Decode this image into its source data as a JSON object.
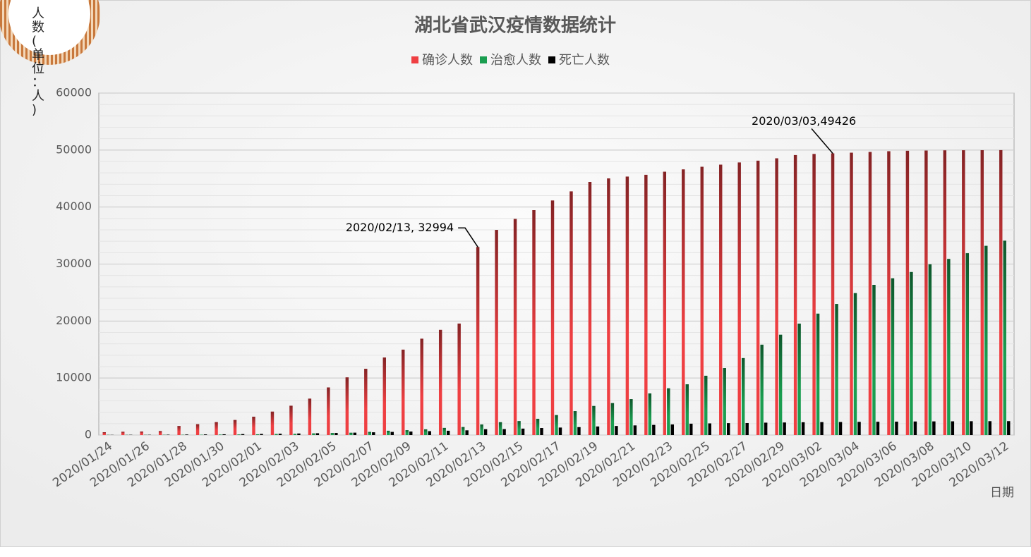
{
  "chart_data": {
    "type": "bar",
    "title": "湖北省武汉疫情数据统计",
    "y_label": "人数(单位：人)",
    "x_label": "日期",
    "categories": [
      "2020/01/24",
      null,
      "2020/01/26",
      null,
      "2020/01/28",
      null,
      "2020/01/30",
      null,
      "2020/02/01",
      null,
      "2020/02/03",
      null,
      "2020/02/05",
      null,
      "2020/02/07",
      null,
      "2020/02/09",
      null,
      "2020/02/11",
      null,
      "2020/02/13",
      null,
      "2020/02/15",
      null,
      "2020/02/17",
      null,
      "2020/02/19",
      null,
      "2020/02/21",
      null,
      "2020/02/23",
      null,
      "2020/02/25",
      null,
      "2020/02/27",
      null,
      "2020/02/29",
      null,
      "2020/03/02",
      null,
      "2020/03/04",
      null,
      "2020/03/06",
      null,
      "2020/03/08",
      null,
      "2020/03/10",
      null,
      "2020/03/12"
    ],
    "series": [
      {
        "name": "确诊人数",
        "color": "#ef3f42",
        "values": [
          495,
          572,
          618,
          698,
          1590,
          1905,
          2261,
          2639,
          3215,
          4109,
          5142,
          6384,
          8351,
          10117,
          11618,
          13603,
          14982,
          16902,
          18454,
          19558,
          32994,
          35991,
          37914,
          39462,
          41152,
          42752,
          44412,
          45027,
          45346,
          45660,
          46201,
          46607,
          47071,
          47441,
          47824,
          48137,
          48557,
          49122,
          49315,
          49426,
          49540,
          49671,
          49797,
          49871,
          49912,
          49948,
          49965,
          49978,
          49986
        ]
      },
      {
        "name": "治愈人数",
        "color": "#1a9e50",
        "values": [
          31,
          32,
          35,
          40,
          50,
          60,
          80,
          100,
          130,
          180,
          200,
          280,
          350,
          400,
          550,
          750,
          850,
          1000,
          1250,
          1400,
          1850,
          2250,
          2450,
          2850,
          3500,
          4200,
          5100,
          5600,
          6300,
          7300,
          8200,
          8900,
          10400,
          11750,
          13500,
          15850,
          17600,
          19550,
          21300,
          23000,
          24900,
          26350,
          27500,
          28600,
          29950,
          30900,
          31900,
          33200,
          34100
        ]
      },
      {
        "name": "死亡人数",
        "color": "#000000",
        "values": [
          23,
          39,
          45,
          63,
          85,
          104,
          129,
          159,
          192,
          224,
          265,
          313,
          362,
          414,
          478,
          545,
          608,
          681,
          748,
          820,
          1016,
          1036,
          1123,
          1233,
          1309,
          1381,
          1497,
          1585,
          1684,
          1774,
          1856,
          1987,
          2043,
          2085,
          2104,
          2169,
          2195,
          2238,
          2260,
          2282,
          2305,
          2326,
          2349,
          2370,
          2388,
          2404,
          2423,
          2430,
          2436
        ]
      }
    ],
    "annotations": [
      "2020/02/13, 32994",
      "2020/03/03,49426"
    ],
    "ylim": [
      0,
      60000
    ],
    "yticks": [
      0,
      10000,
      20000,
      30000,
      40000,
      50000,
      60000
    ],
    "grid": true,
    "legend": "top"
  }
}
